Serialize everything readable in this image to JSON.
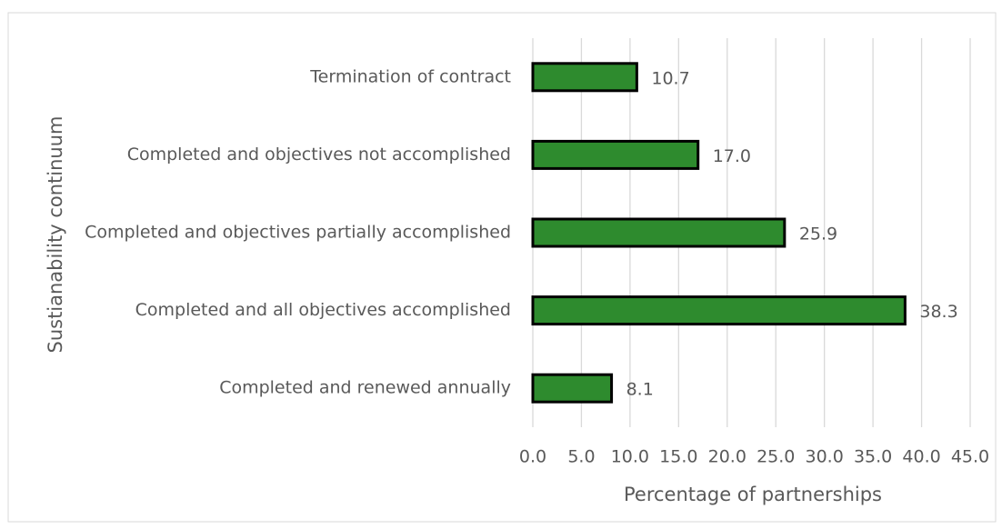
{
  "chart_data": {
    "type": "barh",
    "xlabel": "Percentage of partnerships",
    "ylabel": "Sustianability continuum",
    "categories": [
      "Termination of contract",
      "Completed and objectives not accomplished",
      "Completed and objectives partially accomplished",
      "Completed and all objectives accomplished",
      "Completed and renewed annually"
    ],
    "values": [
      10.7,
      17.0,
      25.9,
      38.3,
      8.1
    ],
    "value_labels": [
      "10.7",
      "17.0",
      "25.9",
      "38.3",
      "8.1"
    ],
    "color": "#2e8b2e",
    "xlim": [
      0,
      45
    ],
    "xticks": [
      {
        "value": 0,
        "label": "0.0"
      },
      {
        "value": 5,
        "label": "5.0"
      },
      {
        "value": 10,
        "label": "10.0"
      },
      {
        "value": 15,
        "label": "15.0"
      },
      {
        "value": 20,
        "label": "20.0"
      },
      {
        "value": 25,
        "label": "25.0"
      },
      {
        "value": 30,
        "label": "30.0"
      },
      {
        "value": 35,
        "label": "35.0"
      },
      {
        "value": 40,
        "label": "40.0"
      },
      {
        "value": 45,
        "label": "45.0"
      }
    ],
    "grid": true
  }
}
